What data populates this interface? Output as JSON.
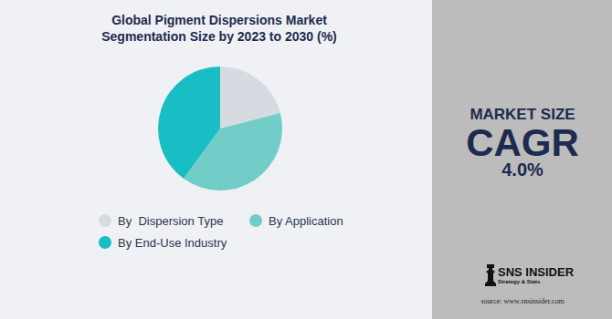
{
  "chart_data": {
    "type": "pie",
    "title": [
      "Global Pigment Dispersions Market",
      "Segmentation Size by 2023 to 2030 (%)"
    ],
    "categories": [
      "By  Dispersion Type",
      "By Application",
      "By End-Use Industry"
    ],
    "values": [
      21,
      39,
      40
    ],
    "colors": [
      "#d5dbe0",
      "#72cdc9",
      "#18bec4"
    ],
    "legend": "bottom",
    "annotations": [
      "MARKET SIZE",
      "CAGR",
      "4.0%",
      "SNS INSIDER",
      "Strategy & Stats",
      "source: www.snsinsider.com"
    ]
  }
}
